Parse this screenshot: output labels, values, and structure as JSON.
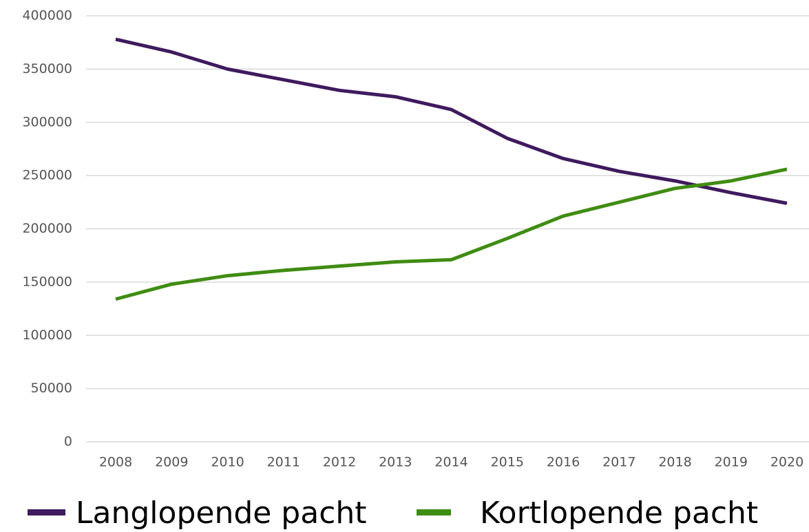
{
  "chart_data": {
    "type": "line",
    "categories": [
      "2008",
      "2009",
      "2010",
      "2011",
      "2012",
      "2013",
      "2014",
      "2015",
      "2016",
      "2017",
      "2018",
      "2019",
      "2020"
    ],
    "series": [
      {
        "name": "Langlopende pacht",
        "color": "#3f1a5e",
        "values": [
          378000,
          366000,
          350000,
          340000,
          330000,
          324000,
          312000,
          285000,
          266000,
          254000,
          245000,
          234000,
          224000
        ]
      },
      {
        "name": "Kortlopende pacht",
        "color": "#3f8c12",
        "values": [
          134000,
          148000,
          156000,
          161000,
          165000,
          169000,
          171000,
          191000,
          212000,
          225000,
          238000,
          245000,
          256000
        ]
      }
    ],
    "ylim": [
      0,
      400000
    ],
    "yticks": [
      0,
      50000,
      100000,
      150000,
      200000,
      250000,
      300000,
      350000,
      400000
    ],
    "grid": true,
    "legend": "bottom"
  }
}
